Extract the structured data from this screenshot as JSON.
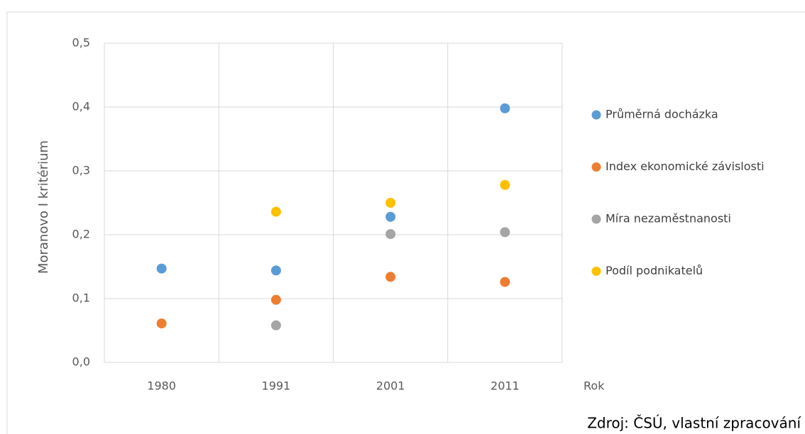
{
  "chart_data": {
    "type": "scatter",
    "categories": [
      "1980",
      "1991",
      "2001",
      "2011"
    ],
    "series": [
      {
        "name": "Průměrná docházka",
        "color": "#5b9bd5",
        "values": [
          0.147,
          0.144,
          0.228,
          0.398
        ]
      },
      {
        "name": "Index ekonomické závislosti",
        "color": "#ed7d31",
        "values": [
          0.061,
          0.098,
          0.134,
          0.126
        ]
      },
      {
        "name": "Míra nezaměstnanosti",
        "color": "#a5a5a5",
        "values": [
          null,
          0.058,
          0.201,
          0.204
        ]
      },
      {
        "name": "Podíl podnikatelů",
        "color": "#ffc000",
        "values": [
          null,
          0.236,
          0.25,
          0.278
        ]
      }
    ],
    "ylim": [
      0,
      0.5
    ],
    "yticks": [
      {
        "value": 0,
        "label": "0,0"
      },
      {
        "value": 0.1,
        "label": "0,1"
      },
      {
        "value": 0.2,
        "label": "0,2"
      },
      {
        "value": 0.3,
        "label": "0,3"
      },
      {
        "value": 0.4,
        "label": "0,4"
      },
      {
        "value": 0.5,
        "label": "0,5"
      }
    ],
    "x_label": "Rok",
    "y_label": "Moranovo I kritérium",
    "source": "Zdroj: ČSÚ, vlastní zpracování",
    "grid": true,
    "legend": "right"
  }
}
